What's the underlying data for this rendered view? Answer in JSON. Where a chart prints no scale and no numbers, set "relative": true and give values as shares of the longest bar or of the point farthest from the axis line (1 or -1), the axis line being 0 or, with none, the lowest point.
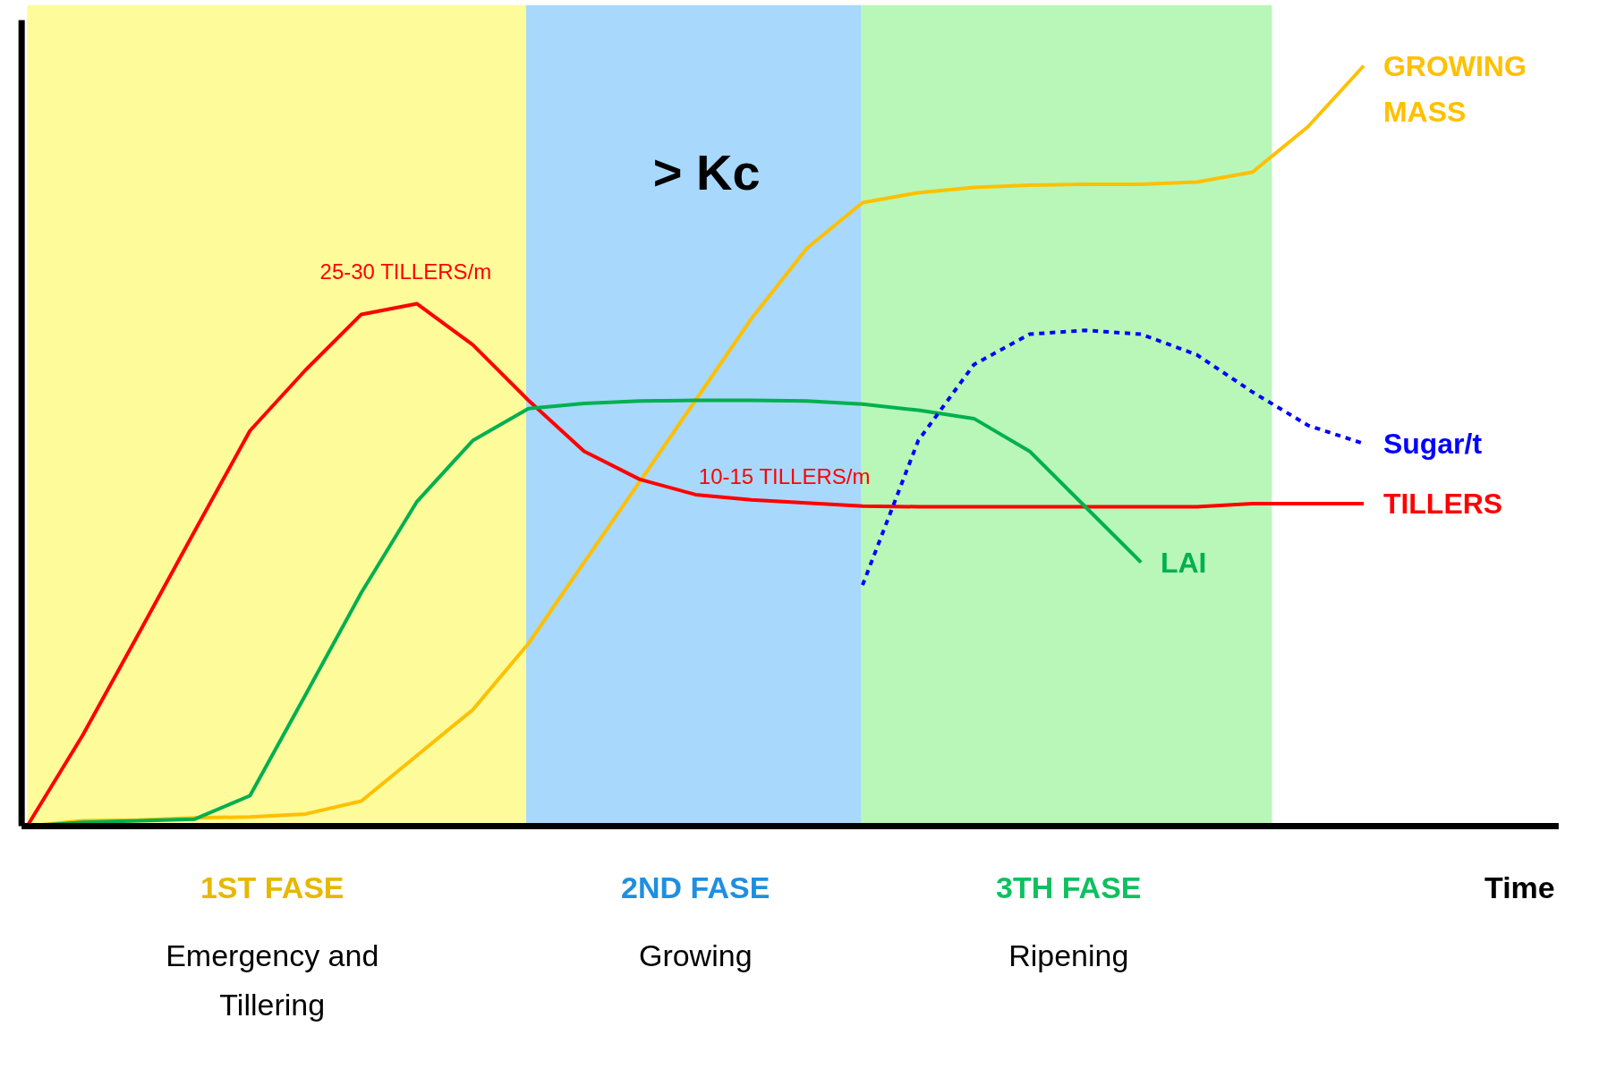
{
  "chart_data": {
    "type": "line",
    "relative": true,
    "xlabel": "Time",
    "categories": [
      null,
      null,
      null,
      null,
      null,
      null,
      null,
      null,
      null,
      null,
      null,
      null,
      null,
      null,
      null,
      null,
      null,
      null,
      null,
      null,
      null,
      null,
      null,
      null,
      null
    ],
    "series": [
      {
        "name": "GROWING MASS",
        "color": "#ffc000",
        "line_style": "solid",
        "values": [
          0,
          0.007,
          0.008,
          0.011,
          0.012,
          0.016,
          0.033,
          0.093,
          0.153,
          0.24,
          0.347,
          0.453,
          0.56,
          0.667,
          0.76,
          0.82,
          0.833,
          0.84,
          0.843,
          0.844,
          0.844,
          0.847,
          0.86,
          0.92,
          1
        ]
      },
      {
        "name": "TILLERS",
        "color": "#ff0000",
        "line_style": "solid",
        "values": [
          0,
          0.12,
          0.253,
          0.387,
          0.52,
          0.6,
          0.673,
          0.687,
          0.633,
          0.56,
          0.493,
          0.456,
          0.436,
          0.429,
          0.425,
          0.421,
          0.42,
          0.42,
          0.42,
          0.42,
          0.42,
          0.42,
          0.424,
          0.424,
          0.424
        ]
      },
      {
        "name": "LAI",
        "color": "#00b050",
        "line_style": "solid",
        "values": [
          0,
          0.005,
          0.007,
          0.009,
          0.04,
          0.173,
          0.307,
          0.427,
          0.507,
          0.549,
          0.556,
          0.559,
          0.56,
          0.56,
          0.559,
          0.555,
          0.547,
          0.536,
          0.493,
          0.42,
          0.347,
          null,
          null,
          null,
          null
        ]
      },
      {
        "name": "Sugar/t",
        "color": "#0000ff",
        "line_style": "dashed",
        "values": [
          null,
          null,
          null,
          null,
          null,
          null,
          null,
          null,
          null,
          null,
          null,
          null,
          null,
          null,
          null,
          0.317,
          0.507,
          0.607,
          0.647,
          0.652,
          0.647,
          0.62,
          0.571,
          0.527,
          0.503
        ]
      }
    ],
    "annotations": [
      "> Kc",
      "25-30 TILLERS/m",
      "10-15 TILLERS/m",
      "1ST FASE",
      "Emergency and Tillering",
      "2ND FASE",
      "Growing",
      "3TH FASE",
      "Ripening"
    ],
    "marker": "none",
    "grid": false,
    "legend": false
  }
}
